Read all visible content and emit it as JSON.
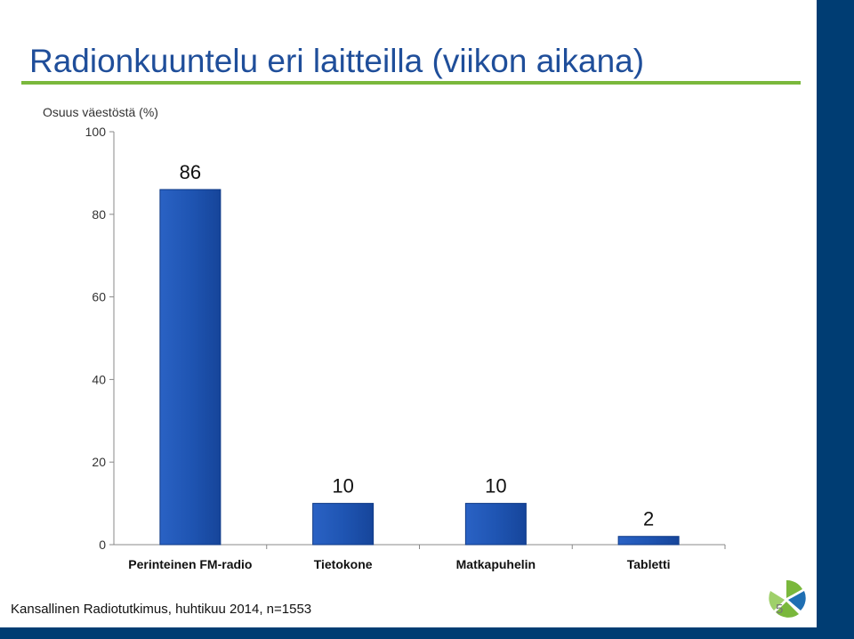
{
  "slide": {
    "title": "Radionkuuntelu eri laitteilla (viikon aikana)",
    "subtitle": "Osuus väestöstä (%)",
    "source": "Kansallinen Radiotutkimus, huhtikuu 2014, n=1553",
    "page_number": "5"
  },
  "colors": {
    "bar": "#1f55b3",
    "title": "#1f4e9a",
    "accent_rule": "#7ab83c",
    "band": "#003d73"
  },
  "chart_data": {
    "type": "bar",
    "categories": [
      "Perinteinen FM-radio",
      "Tietokone",
      "Matkapuhelin",
      "Tabletti"
    ],
    "values": [
      86,
      10,
      10,
      2
    ],
    "data_labels": [
      "86",
      "10",
      "10",
      "2"
    ],
    "ylim": [
      0,
      100
    ],
    "yticks": [
      0,
      20,
      40,
      60,
      80,
      100
    ],
    "ytick_labels": [
      "0",
      "20",
      "40",
      "60",
      "80",
      "100"
    ],
    "grid": false,
    "legend": "none"
  }
}
